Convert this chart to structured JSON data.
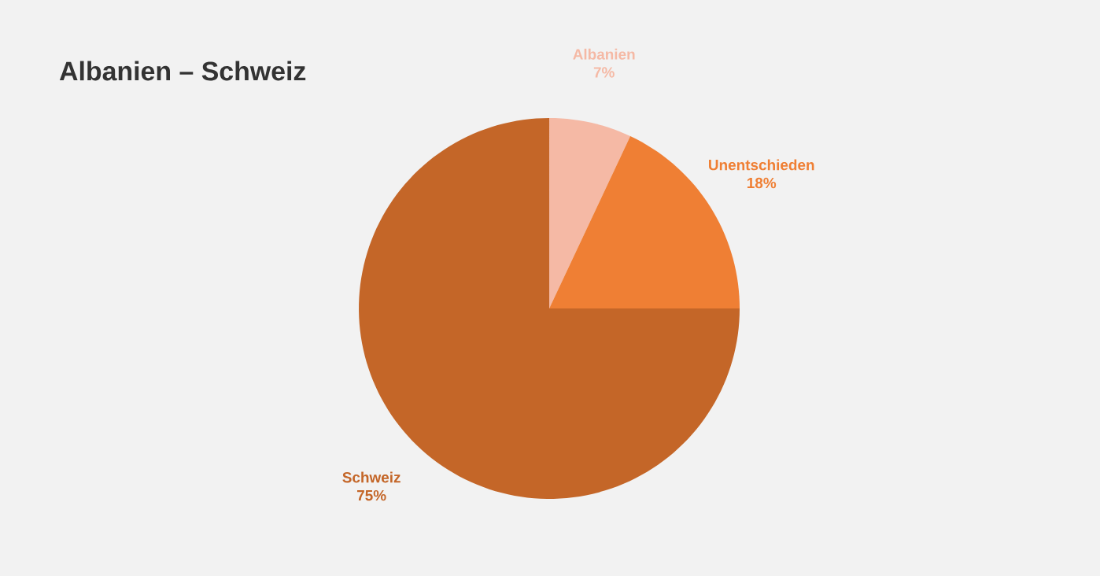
{
  "chart_data": {
    "type": "pie",
    "title": "Albanien – Schweiz",
    "categories": [
      "Albanien",
      "Unentschieden",
      "Schweiz"
    ],
    "values": [
      7,
      18,
      75
    ],
    "value_labels": [
      "7%",
      "18%",
      "75%"
    ],
    "colors": [
      "#f5b9a5",
      "#ef7f34",
      "#c46628"
    ]
  }
}
